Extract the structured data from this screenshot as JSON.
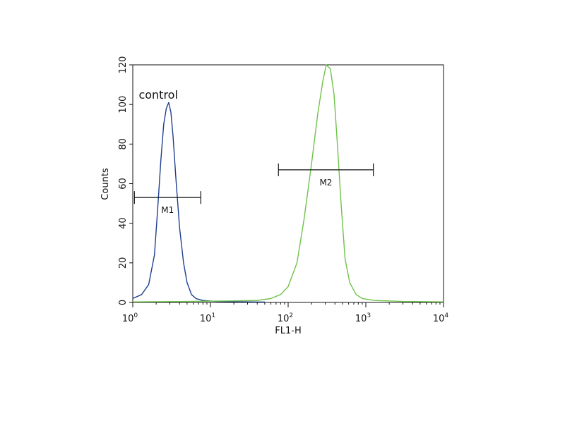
{
  "chart_data": {
    "type": "line",
    "title": "",
    "xlabel": "FL1-H",
    "ylabel": "Counts",
    "xscale": "log",
    "xlim": [
      1,
      10000
    ],
    "ylim": [
      0,
      120
    ],
    "grid": false,
    "colors": {
      "control": "#1f3f8f",
      "sample": "#6fc24a",
      "axis": "#111111"
    },
    "x_ticks": [
      {
        "base": "10",
        "exp": "0",
        "value": 1
      },
      {
        "base": "10",
        "exp": "1",
        "value": 10
      },
      {
        "base": "10",
        "exp": "2",
        "value": 100
      },
      {
        "base": "10",
        "exp": "3",
        "value": 1000
      },
      {
        "base": "10",
        "exp": "4",
        "value": 10000
      }
    ],
    "y_ticks": [
      "0",
      "20",
      "40",
      "60",
      "80",
      "100",
      "120"
    ],
    "series": [
      {
        "name": "control",
        "color": "#1f3f8f",
        "points": [
          [
            1.0,
            2
          ],
          [
            1.3,
            4
          ],
          [
            1.6,
            9
          ],
          [
            1.9,
            24
          ],
          [
            2.1,
            48
          ],
          [
            2.3,
            72
          ],
          [
            2.5,
            90
          ],
          [
            2.7,
            98
          ],
          [
            2.9,
            101
          ],
          [
            3.1,
            96
          ],
          [
            3.3,
            84
          ],
          [
            3.6,
            62
          ],
          [
            4.0,
            38
          ],
          [
            4.5,
            20
          ],
          [
            5.0,
            10
          ],
          [
            5.7,
            4
          ],
          [
            6.5,
            2
          ],
          [
            8,
            1
          ],
          [
            12,
            0.5
          ],
          [
            20,
            0.4
          ],
          [
            30,
            0.3
          ],
          [
            50,
            0.2
          ]
        ]
      },
      {
        "name": "",
        "color": "#6fc24a",
        "points": [
          [
            1,
            0.3
          ],
          [
            5,
            0.5
          ],
          [
            20,
            0.8
          ],
          [
            40,
            1
          ],
          [
            60,
            2
          ],
          [
            80,
            4
          ],
          [
            100,
            8
          ],
          [
            130,
            20
          ],
          [
            160,
            42
          ],
          [
            200,
            70
          ],
          [
            240,
            95
          ],
          [
            280,
            112
          ],
          [
            310,
            120
          ],
          [
            350,
            118
          ],
          [
            390,
            105
          ],
          [
            430,
            80
          ],
          [
            480,
            50
          ],
          [
            540,
            22
          ],
          [
            620,
            10
          ],
          [
            750,
            4
          ],
          [
            900,
            2
          ],
          [
            1300,
            1
          ],
          [
            3000,
            0.5
          ],
          [
            10000,
            0.3
          ]
        ]
      }
    ],
    "markers": [
      {
        "label": "M1",
        "x_start": 1.05,
        "x_end": 7.5,
        "y": 53
      },
      {
        "label": "M2",
        "x_start": 75,
        "x_end": 1250,
        "y": 67
      }
    ],
    "annotations": [
      {
        "text": "control",
        "x": 1.6,
        "y": 105
      }
    ]
  }
}
